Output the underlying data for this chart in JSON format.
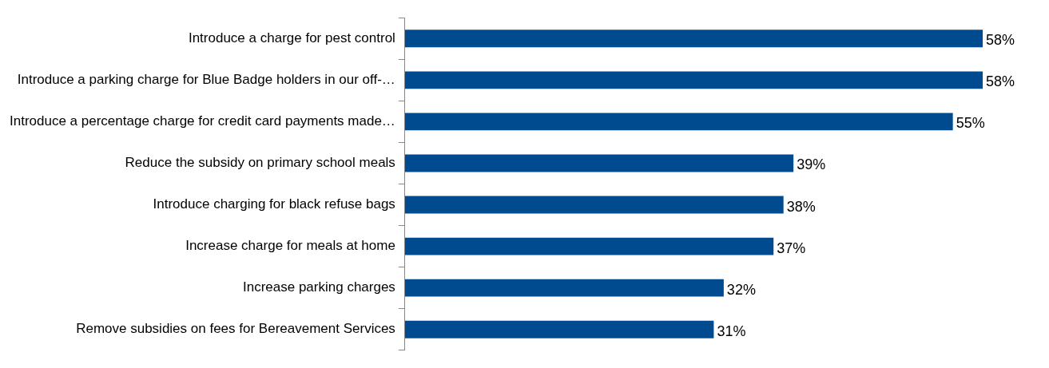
{
  "chart_data": {
    "type": "bar",
    "orientation": "horizontal",
    "categories": [
      "Introduce a charge for pest control",
      "Introduce a parking charge for Blue Badge holders in our off-…",
      "Introduce a percentage charge for credit card payments made…",
      "Reduce the subsidy on primary school meals",
      "Introduce charging for black refuse bags",
      "Increase charge for meals at home",
      "Increase parking charges",
      "Remove subsidies on fees for Bereavement Services"
    ],
    "values": [
      58,
      58,
      55,
      39,
      38,
      37,
      32,
      31
    ],
    "color": "#004a8f",
    "value_labels": [
      "58%",
      "58%",
      "55%",
      "39%",
      "38%",
      "37%",
      "32%",
      "31%"
    ],
    "grid": false,
    "legend": false
  }
}
